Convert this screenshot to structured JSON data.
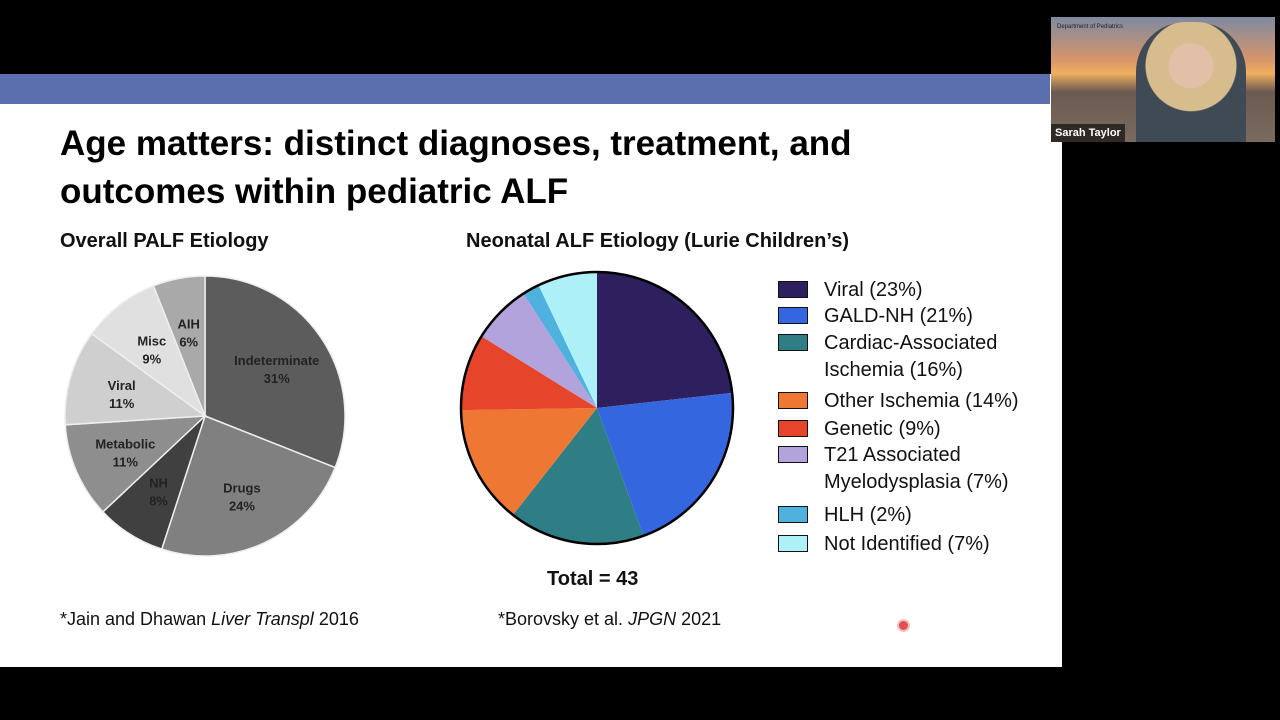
{
  "slide": {
    "title": "Age matters: distinct diagnoses, treatment, and outcomes within pediatric ALF",
    "left_citation_pre": "*Jain and Dhawan ",
    "left_citation_journal": "Liver Transpl",
    "left_citation_post": " 2016",
    "right_citation_pre": "*Borovsky et al. ",
    "right_citation_journal": "JPGN",
    "right_citation_post": " 2021",
    "total": "Total = 43",
    "accent": "#5b6eae"
  },
  "webcam": {
    "name": "Sarah Taylor",
    "logo_text": "Department of Pediatrics"
  },
  "chart_data": [
    {
      "type": "pie",
      "title": "Overall PALF Etiology",
      "start": "top",
      "direction": "clockwise",
      "slices": [
        {
          "label": "Indeterminate",
          "value_label": "31%",
          "value": 31,
          "color": "#5c5c5c"
        },
        {
          "label": "Drugs",
          "value_label": "24%",
          "value": 24,
          "color": "#808080"
        },
        {
          "label": "NH",
          "value_label": "8%",
          "value": 8,
          "color": "#404040"
        },
        {
          "label": "Metabolic",
          "value_label": "11%",
          "value": 11,
          "color": "#8e8e8e"
        },
        {
          "label": "Viral",
          "value_label": "11%",
          "value": 11,
          "color": "#cfcfcf"
        },
        {
          "label": "Misc",
          "value_label": "9%",
          "value": 9,
          "color": "#e0e0e0"
        },
        {
          "label": "AIH",
          "value_label": "6%",
          "value": 6,
          "color": "#a9a9a9"
        }
      ]
    },
    {
      "type": "pie",
      "title": "Neonatal ALF Etiology (Lurie Children’s)",
      "start": "top",
      "direction": "clockwise",
      "legend": "right",
      "slices": [
        {
          "label": "Viral (23%)",
          "value": 23,
          "color": "#2e1f5e"
        },
        {
          "label": "GALD-NH (21%)",
          "value": 21,
          "color": "#3466e0"
        },
        {
          "label": "Cardiac-Associated Ischemia (16%)",
          "value": 16,
          "color": "#2f7e86"
        },
        {
          "label": "Other Ischemia (14%)",
          "value": 14,
          "color": "#ee7733"
        },
        {
          "label": "Genetic (9%)",
          "value": 9,
          "color": "#e6452b"
        },
        {
          "label": "T21 Associated Myelodysplasia (7%)",
          "value": 7,
          "color": "#b3a3dc"
        },
        {
          "label": "HLH (2%)",
          "value": 2,
          "color": "#4fb2de"
        },
        {
          "label": "Not Identified (7%)",
          "value": 7,
          "color": "#aef0f8"
        }
      ]
    }
  ]
}
